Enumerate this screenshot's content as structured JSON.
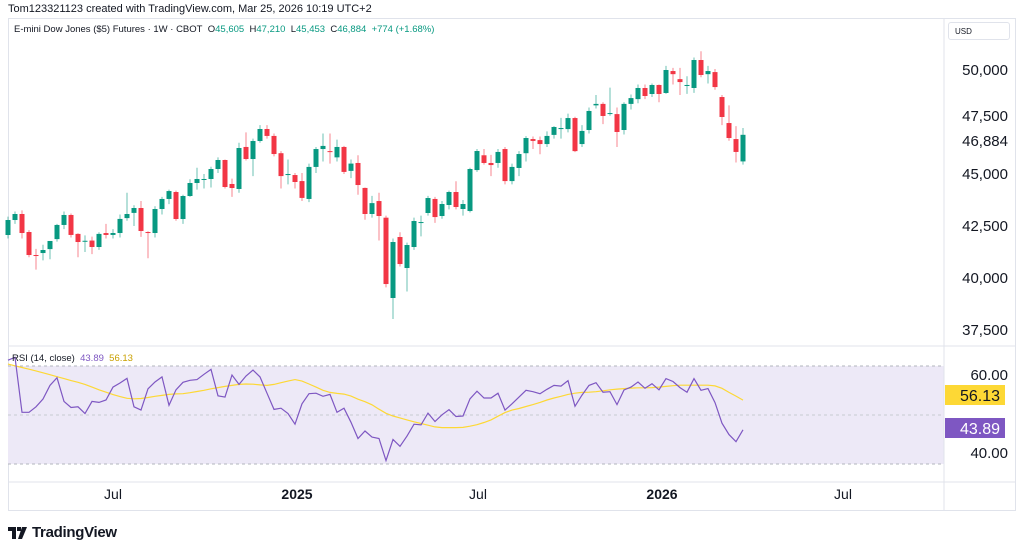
{
  "header": {
    "attribution": "Tom123321123 created with TradingView.com, Mar 25, 2026 10:19 UTC+2"
  },
  "legend": {
    "symbol": "E-mini Dow Jones ($5) Futures · 1W · CBOT",
    "open_label": "O",
    "open": "45,605",
    "high_label": "H",
    "high": "47,210",
    "low_label": "L",
    "low": "45,453",
    "close_label": "C",
    "close": "46,884",
    "change": "+774 (+1.68%)"
  },
  "currency": "USD",
  "rsi_legend": {
    "name": "RSI (14, close)",
    "rsi_value": "43.89",
    "ma_value": "56.13"
  },
  "colors": {
    "up": "#089981",
    "down": "#f23645",
    "rsi": "#7e57c2",
    "rsi_ma": "#fdd835",
    "rsi_band": "#ede9f7"
  },
  "logo": {
    "text": "TradingView"
  },
  "chart_data": [
    {
      "type": "candlestick",
      "interval": "1W",
      "ylim": [
        37500,
        51500
      ],
      "price_ticks": [
        "50,000",
        "47,500",
        "45,000",
        "42,500",
        "40,000",
        "37,500"
      ],
      "price_tick_values": [
        50000,
        47500,
        45000,
        42500,
        40000,
        37500
      ],
      "last_price_label": "46,884",
      "last_price": 46884,
      "time_ticks": [
        {
          "label": "Jul",
          "date": "2024-07-01",
          "bold": false
        },
        {
          "label": "2025",
          "date": "2025-01-01",
          "bold": true
        },
        {
          "label": "Jul",
          "date": "2025-07-01",
          "bold": false
        },
        {
          "label": "2026",
          "date": "2026-01-01",
          "bold": true
        },
        {
          "label": "Jul",
          "date": "2026-07-01",
          "bold": false
        }
      ],
      "candles_fields": [
        "date",
        "open",
        "high",
        "low",
        "close"
      ],
      "candles": [
        [
          "2024-03-18",
          42067,
          42950,
          41900,
          42788
        ],
        [
          "2024-03-25",
          42788,
          43200,
          42600,
          43077
        ],
        [
          "2024-04-01",
          43077,
          43250,
          41900,
          42163
        ],
        [
          "2024-04-08",
          42211,
          42300,
          41000,
          41105
        ],
        [
          "2024-04-15",
          41105,
          41400,
          40400,
          41060
        ],
        [
          "2024-04-22",
          41200,
          41600,
          40850,
          41346
        ],
        [
          "2024-04-29",
          41390,
          41750,
          40900,
          41780
        ],
        [
          "2024-05-06",
          41870,
          42600,
          41750,
          42550
        ],
        [
          "2024-05-13",
          42550,
          43200,
          42350,
          43030
        ],
        [
          "2024-05-20",
          43030,
          43100,
          41950,
          42070
        ],
        [
          "2024-05-27",
          42120,
          42150,
          41000,
          41730
        ],
        [
          "2024-06-03",
          41750,
          42050,
          41250,
          41790
        ],
        [
          "2024-06-10",
          41800,
          41990,
          41150,
          41490
        ],
        [
          "2024-06-17",
          41490,
          42200,
          41350,
          42120
        ],
        [
          "2024-06-24",
          42160,
          42600,
          41900,
          42070
        ],
        [
          "2024-07-01",
          42070,
          42350,
          41900,
          42163
        ],
        [
          "2024-07-08",
          42163,
          43050,
          41950,
          42840
        ],
        [
          "2024-07-15",
          42880,
          44100,
          42750,
          43077
        ],
        [
          "2024-07-22",
          43130,
          43500,
          42500,
          43365
        ],
        [
          "2024-07-29",
          43365,
          43700,
          41980,
          42260
        ],
        [
          "2024-08-05",
          42210,
          42250,
          40950,
          42163
        ],
        [
          "2024-08-12",
          42163,
          43450,
          41950,
          43317
        ],
        [
          "2024-08-19",
          43317,
          43900,
          43050,
          43800
        ],
        [
          "2024-08-26",
          43800,
          44250,
          43550,
          44180
        ],
        [
          "2024-09-02",
          44134,
          44200,
          42750,
          42836
        ],
        [
          "2024-09-09",
          42836,
          44000,
          42600,
          43942
        ],
        [
          "2024-09-16",
          43942,
          44750,
          43900,
          44567
        ],
        [
          "2024-09-23",
          44567,
          45300,
          44250,
          44760
        ],
        [
          "2024-09-30",
          44760,
          45000,
          44300,
          44760
        ],
        [
          "2024-10-07",
          44760,
          45350,
          44350,
          45240
        ],
        [
          "2024-10-14",
          45240,
          45800,
          45050,
          45673
        ],
        [
          "2024-10-21",
          45673,
          45700,
          44300,
          44375
        ],
        [
          "2024-10-28",
          44520,
          44780,
          43900,
          44326
        ],
        [
          "2024-11-04",
          44280,
          46500,
          44100,
          46250
        ],
        [
          "2024-11-11",
          46300,
          47000,
          45650,
          45720
        ],
        [
          "2024-11-18",
          45720,
          46700,
          44900,
          46586
        ],
        [
          "2024-11-25",
          46586,
          47350,
          46500,
          47163
        ],
        [
          "2024-12-02",
          47163,
          47350,
          46700,
          46830
        ],
        [
          "2024-12-09",
          46830,
          46950,
          45850,
          45960
        ],
        [
          "2024-12-16",
          46000,
          46100,
          44300,
          44900
        ],
        [
          "2024-12-23",
          44950,
          45700,
          44500,
          45000
        ],
        [
          "2024-12-30",
          44950,
          45050,
          44300,
          44615
        ],
        [
          "2025-01-06",
          44660,
          45050,
          43700,
          43850
        ],
        [
          "2025-01-13",
          43800,
          45500,
          43650,
          45340
        ],
        [
          "2025-01-20",
          45340,
          46300,
          45050,
          46200
        ],
        [
          "2025-01-27",
          46200,
          46950,
          45600,
          46350
        ],
        [
          "2025-02-03",
          46100,
          46950,
          45500,
          46060
        ],
        [
          "2025-02-10",
          45800,
          46650,
          45600,
          46300
        ],
        [
          "2025-02-17",
          46300,
          46350,
          45000,
          45100
        ],
        [
          "2025-02-24",
          45150,
          45700,
          44800,
          45500
        ],
        [
          "2025-03-03",
          45530,
          45900,
          44000,
          44470
        ],
        [
          "2025-03-10",
          44330,
          44350,
          42800,
          43077
        ],
        [
          "2025-03-17",
          43077,
          43950,
          42900,
          43600
        ],
        [
          "2025-03-24",
          43700,
          44100,
          41800,
          42980
        ],
        [
          "2025-03-31",
          42900,
          43000,
          39550,
          39710
        ],
        [
          "2025-04-07",
          39038,
          41900,
          38030,
          41730
        ],
        [
          "2025-04-14",
          41970,
          42200,
          40550,
          40672
        ],
        [
          "2025-04-21",
          40480,
          41700,
          39350,
          41586
        ],
        [
          "2025-04-28",
          41490,
          42900,
          41350,
          42740
        ],
        [
          "2025-05-05",
          42690,
          43000,
          42000,
          42690
        ],
        [
          "2025-05-12",
          43125,
          43950,
          43000,
          43845
        ],
        [
          "2025-05-19",
          43800,
          43900,
          42650,
          42930
        ],
        [
          "2025-05-26",
          42980,
          43700,
          42850,
          43557
        ],
        [
          "2025-06-02",
          43510,
          44200,
          43300,
          44134
        ],
        [
          "2025-06-09",
          44134,
          44650,
          43300,
          43413
        ],
        [
          "2025-06-16",
          43317,
          43750,
          43000,
          43557
        ],
        [
          "2025-06-23",
          43220,
          45300,
          43150,
          45240
        ],
        [
          "2025-06-30",
          45190,
          46200,
          45100,
          46105
        ],
        [
          "2025-07-07",
          45900,
          46200,
          45450,
          45530
        ],
        [
          "2025-07-14",
          45530,
          45920,
          44900,
          45430
        ],
        [
          "2025-07-21",
          45530,
          46200,
          45300,
          46060
        ],
        [
          "2025-07-28",
          46200,
          46300,
          44500,
          44660
        ],
        [
          "2025-08-04",
          44660,
          45500,
          44500,
          45340
        ],
        [
          "2025-08-11",
          45290,
          46100,
          44900,
          45960
        ],
        [
          "2025-08-18",
          46000,
          46820,
          45600,
          46730
        ],
        [
          "2025-08-25",
          46680,
          46800,
          46200,
          46590
        ],
        [
          "2025-09-01",
          46630,
          46800,
          45950,
          46440
        ],
        [
          "2025-09-08",
          46440,
          47050,
          46300,
          46830
        ],
        [
          "2025-09-15",
          46880,
          47300,
          46700,
          47260
        ],
        [
          "2025-09-22",
          47160,
          47700,
          46700,
          47210
        ],
        [
          "2025-09-29",
          47160,
          47900,
          47000,
          47690
        ],
        [
          "2025-10-06",
          47690,
          47750,
          46050,
          46100
        ],
        [
          "2025-10-13",
          46440,
          47350,
          46300,
          47070
        ],
        [
          "2025-10-20",
          47115,
          48200,
          46950,
          48030
        ],
        [
          "2025-10-27",
          48300,
          48800,
          48150,
          48370
        ],
        [
          "2025-11-03",
          48370,
          48450,
          47400,
          47790
        ],
        [
          "2025-11-10",
          47930,
          49150,
          47800,
          47930
        ],
        [
          "2025-11-17",
          47880,
          48200,
          46300,
          47020
        ],
        [
          "2025-11-24",
          47115,
          48450,
          46900,
          48370
        ],
        [
          "2025-12-01",
          48370,
          48820,
          48100,
          48650
        ],
        [
          "2025-12-08",
          48600,
          49300,
          48400,
          49135
        ],
        [
          "2025-12-15",
          49135,
          49300,
          48600,
          48750
        ],
        [
          "2025-12-22",
          48846,
          49350,
          48700,
          49280
        ],
        [
          "2025-12-29",
          49280,
          49300,
          48450,
          48846
        ],
        [
          "2026-01-05",
          48895,
          50200,
          48850,
          50000
        ],
        [
          "2026-01-12",
          49950,
          50100,
          49300,
          49800
        ],
        [
          "2026-01-19",
          49560,
          50100,
          48800,
          49420
        ],
        [
          "2026-01-26",
          49280,
          49700,
          48850,
          49280
        ],
        [
          "2026-02-02",
          49135,
          50600,
          48900,
          50480
        ],
        [
          "2026-02-09",
          50480,
          50900,
          49650,
          49760
        ],
        [
          "2026-02-16",
          49800,
          50200,
          49350,
          49950
        ],
        [
          "2026-02-23",
          49900,
          50050,
          49050,
          49180
        ],
        [
          "2026-03-02",
          48700,
          48800,
          47350,
          47740
        ],
        [
          "2026-03-09",
          47450,
          48300,
          46600,
          46730
        ],
        [
          "2026-03-16",
          46680,
          47300,
          45550,
          46060
        ],
        [
          "2026-03-23",
          45605,
          47210,
          45453,
          46884
        ]
      ]
    },
    {
      "type": "line",
      "name": "RSI (14, close)",
      "ylim": [
        25,
        75
      ],
      "band": [
        30,
        70
      ],
      "middle": 50,
      "axis_ticks": [
        "60.00",
        "40.00"
      ],
      "axis_tick_values": [
        60,
        40
      ],
      "rsi_label": "43.89",
      "ma_label": "56.13",
      "rsi": [
        72.6,
        73.8,
        51.1,
        51.1,
        53.4,
        56.6,
        62.2,
        65.4,
        55.6,
        53.1,
        53.4,
        50.6,
        55.6,
        55.2,
        56.2,
        61.5,
        63.2,
        65.1,
        53.4,
        52.0,
        60.8,
        63.6,
        65.7,
        54.0,
        60.4,
        63.5,
        64.3,
        64.6,
        66.8,
        68.8,
        57.9,
        57.4,
        66.5,
        62.6,
        66.1,
        68.5,
        65.7,
        59.0,
        52.3,
        52.8,
        50.6,
        46.2,
        54.6,
        58.8,
        59.0,
        57.7,
        58.5,
        51.1,
        52.8,
        47.0,
        40.3,
        43.4,
        40.9,
        40.3,
        31.2,
        39.9,
        37.1,
        41.3,
        46.2,
        45.9,
        50.8,
        47.3,
        50.1,
        52.2,
        49.4,
        49.6,
        56.7,
        59.8,
        57.0,
        57.0,
        59.0,
        52.0,
        54.6,
        57.4,
        60.2,
        59.6,
        58.8,
        60.6,
        62.2,
        61.9,
        64.2,
        53.6,
        58.2,
        62.2,
        63.3,
        59.4,
        59.6,
        54.3,
        60.3,
        61.5,
        63.6,
        61.0,
        62.9,
        60.4,
        65.0,
        63.8,
        61.3,
        59.4,
        65.0,
        60.2,
        60.9,
        55.1,
        46.6,
        41.9,
        39.0,
        43.89
      ],
      "rsi_ma": [
        71.0,
        70.3,
        69.6,
        68.9,
        68.2,
        67.4,
        66.6,
        65.8,
        65.0,
        64.2,
        63.5,
        62.6,
        61.5,
        60.4,
        59.4,
        58.4,
        57.6,
        56.9,
        56.7,
        56.8,
        57.2,
        57.7,
        58.1,
        58.5,
        58.7,
        58.8,
        59.2,
        59.7,
        60.2,
        60.8,
        61.3,
        61.8,
        62.2,
        62.6,
        62.8,
        62.7,
        62.4,
        62.2,
        62.6,
        63.3,
        64.0,
        64.6,
        64.0,
        62.8,
        61.5,
        60.2,
        59.3,
        58.9,
        58.6,
        57.8,
        56.5,
        55.5,
        54.2,
        52.4,
        50.7,
        49.6,
        48.8,
        48.0,
        47.2,
        46.5,
        45.8,
        45.1,
        44.8,
        44.8,
        44.8,
        44.9,
        45.4,
        46.0,
        46.9,
        48.0,
        49.5,
        51.0,
        52.0,
        52.7,
        53.5,
        54.3,
        55.2,
        56.2,
        57.0,
        57.7,
        58.5,
        59.0,
        59.3,
        59.4,
        59.6,
        60.0,
        60.4,
        60.7,
        60.9,
        61.1,
        61.2,
        61.2,
        61.3,
        61.5,
        61.8,
        62.1,
        62.3,
        62.3,
        62.3,
        62.3,
        62.3,
        62.0,
        61.0,
        59.3,
        57.8,
        56.13
      ]
    }
  ]
}
